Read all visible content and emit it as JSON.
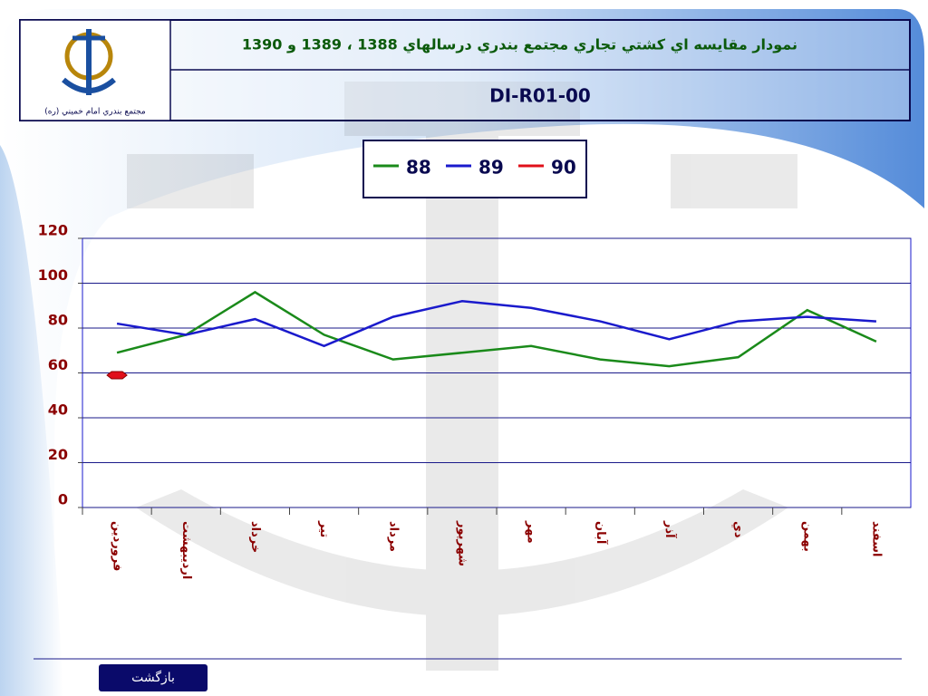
{
  "header": {
    "logo_caption": "مجتمع بندري امام خميني (ره)",
    "code": "DI-R01-00"
  },
  "chart_data": {
    "type": "line",
    "title": "نمودار مقايسه اي كشتي تجاري مجتمع بندري درسالهاي 1388 ، 1389 و 1390",
    "categories": [
      "فروردين",
      "ارديبهشت",
      "خرداد",
      "تير",
      "مرداد",
      "شهريور",
      "مهر",
      "آبان",
      "آذر",
      "دي",
      "بهمن",
      "اسفند"
    ],
    "series": [
      {
        "name": "88",
        "color": "#1a8a1a",
        "values": [
          69,
          77,
          96,
          77,
          66,
          69,
          72,
          66,
          63,
          67,
          88,
          74
        ]
      },
      {
        "name": "89",
        "color": "#1a1acc",
        "values": [
          82,
          77,
          84,
          72,
          85,
          92,
          89,
          83,
          75,
          83,
          85,
          83
        ]
      },
      {
        "name": "90",
        "color": "#e0101a",
        "values": [
          59,
          null,
          null,
          null,
          null,
          null,
          null,
          null,
          null,
          null,
          null,
          null
        ]
      }
    ],
    "ylim": [
      0,
      120
    ],
    "yticks": [
      0,
      20,
      40,
      60,
      80,
      100,
      120
    ],
    "grid": true
  },
  "footer": {
    "button": "بازگشت"
  }
}
